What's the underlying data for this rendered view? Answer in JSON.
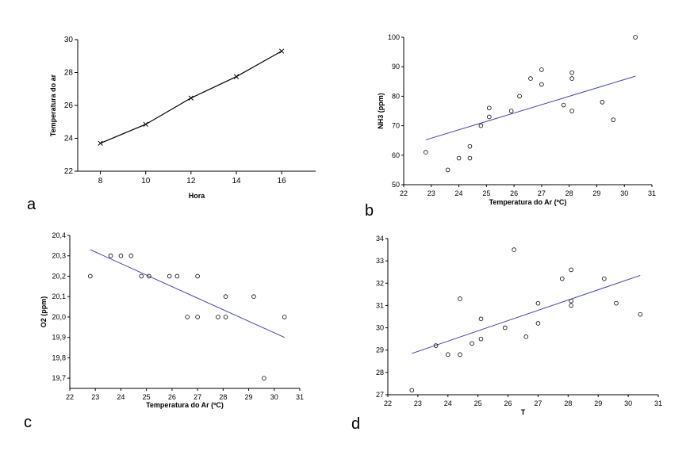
{
  "panels": {
    "a": {
      "label": "a"
    },
    "b": {
      "label": "b"
    },
    "c": {
      "label": "c"
    },
    "d": {
      "label": "d"
    }
  },
  "chart_data": [
    {
      "id": "a",
      "type": "line",
      "xlabel": "Hora",
      "ylabel": "Temperatura do ar",
      "xlim": [
        7,
        17.5
      ],
      "ylim": [
        22,
        30
      ],
      "xticks": [
        8,
        10,
        12,
        14,
        16
      ],
      "yticks": [
        22,
        24,
        26,
        28,
        30
      ],
      "xtick_labels": [
        "8",
        "10",
        "12",
        "14",
        "16"
      ],
      "ytick_labels": [
        "22",
        "24",
        "26",
        "28",
        "30"
      ],
      "marker": "x",
      "x": [
        8,
        10,
        12,
        14,
        16
      ],
      "y": [
        23.7,
        24.85,
        26.45,
        27.75,
        29.3
      ]
    },
    {
      "id": "b",
      "type": "scatter",
      "xlabel": "Temperatura do Ar (ºC)",
      "ylabel": "NH3 (ppm)",
      "xlim": [
        22,
        31
      ],
      "ylim": [
        50,
        100
      ],
      "xticks": [
        22,
        23,
        24,
        25,
        26,
        27,
        28,
        29,
        30,
        31
      ],
      "yticks": [
        50,
        60,
        70,
        80,
        90,
        100
      ],
      "xtick_labels": [
        "22",
        "23",
        "24",
        "25",
        "26",
        "27",
        "28",
        "29",
        "30",
        "31"
      ],
      "ytick_labels": [
        "50",
        "60",
        "70",
        "80",
        "90",
        "100"
      ],
      "x": [
        22.8,
        23.6,
        24.0,
        24.4,
        24.4,
        24.8,
        25.1,
        25.1,
        25.9,
        26.2,
        26.6,
        27.0,
        27.0,
        27.8,
        28.1,
        28.1,
        28.1,
        29.2,
        29.6,
        30.4
      ],
      "y": [
        61,
        55,
        59,
        59,
        63,
        70,
        73,
        76,
        75,
        80,
        86,
        84,
        89,
        77,
        75,
        86,
        88,
        78,
        72,
        100
      ],
      "fit_line": {
        "x": [
          22.8,
          30.4
        ],
        "y": [
          65.2,
          86.8
        ]
      }
    },
    {
      "id": "c",
      "type": "scatter",
      "xlabel": "Temperatura do Ar (ºC)",
      "ylabel": "O2 (ppm)",
      "xlim": [
        22,
        31
      ],
      "ylim": [
        19.65,
        20.4
      ],
      "xticks": [
        22,
        23,
        24,
        25,
        26,
        27,
        28,
        29,
        30,
        31
      ],
      "yticks": [
        19.7,
        19.8,
        19.9,
        20.0,
        20.1,
        20.2,
        20.3,
        20.4
      ],
      "xtick_labels": [
        "22",
        "23",
        "24",
        "25",
        "26",
        "27",
        "28",
        "29",
        "30",
        "31"
      ],
      "ytick_labels": [
        "19,7",
        "19,8",
        "19,9",
        "20,0",
        "20,1",
        "20,2",
        "20,3",
        "20,4"
      ],
      "x": [
        22.8,
        23.6,
        24.0,
        24.4,
        24.8,
        25.1,
        25.9,
        26.2,
        26.6,
        27.0,
        27.0,
        27.8,
        28.1,
        28.1,
        29.2,
        29.6,
        30.4
      ],
      "y": [
        20.2,
        20.3,
        20.3,
        20.3,
        20.2,
        20.2,
        20.2,
        20.2,
        20.0,
        20.2,
        20.0,
        20.0,
        20.0,
        20.1,
        20.1,
        19.7,
        20.0
      ],
      "fit_line": {
        "x": [
          22.8,
          30.4
        ],
        "y": [
          20.33,
          19.9
        ]
      }
    },
    {
      "id": "d",
      "type": "scatter",
      "xlabel": "T",
      "ylabel": "",
      "xlim": [
        22,
        31
      ],
      "ylim": [
        27,
        34
      ],
      "xticks": [
        22,
        23,
        24,
        25,
        26,
        27,
        28,
        29,
        30,
        31
      ],
      "yticks": [
        27,
        28,
        29,
        30,
        31,
        32,
        33,
        34
      ],
      "xtick_labels": [
        "22",
        "23",
        "24",
        "25",
        "26",
        "27",
        "28",
        "29",
        "30",
        "31"
      ],
      "ytick_labels": [
        "27",
        "28",
        "29",
        "30",
        "31",
        "32",
        "33",
        "34"
      ],
      "x": [
        22.8,
        23.6,
        24.0,
        24.4,
        24.4,
        24.8,
        25.1,
        25.1,
        25.9,
        26.2,
        26.6,
        27.0,
        27.0,
        27.8,
        28.1,
        28.1,
        28.1,
        29.2,
        29.6,
        30.4
      ],
      "y": [
        27.2,
        29.2,
        28.8,
        28.8,
        31.3,
        29.3,
        29.5,
        30.4,
        30.0,
        33.5,
        29.6,
        30.2,
        31.1,
        32.2,
        31.0,
        31.2,
        32.6,
        32.2,
        31.1,
        30.6
      ],
      "fit_line": {
        "x": [
          22.8,
          30.4
        ],
        "y": [
          28.85,
          32.35
        ]
      }
    }
  ]
}
